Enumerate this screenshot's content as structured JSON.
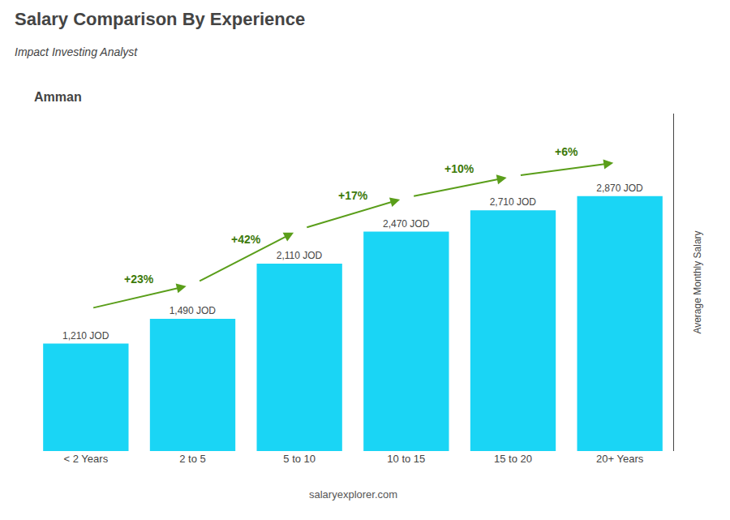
{
  "chart_data": {
    "type": "bar",
    "title": "Salary Comparison By Experience",
    "subtitle": "Impact Investing Analyst",
    "ylabel": "Average Monthly Salary",
    "categories": [
      "< 2 Years",
      "2 to 5",
      "5 to 10",
      "10 to 15",
      "15 to 20",
      "20+ Years"
    ],
    "values": [
      1210,
      1490,
      2110,
      2470,
      2710,
      2870
    ],
    "value_labels": [
      "1,210 JOD",
      "1,490 JOD",
      "2,110 JOD",
      "2,470 JOD",
      "2,710 JOD",
      "2,870 JOD"
    ],
    "data_labels": true,
    "color": "#1ad5f5",
    "ylim": [
      0,
      3800
    ],
    "tick_labels": "x",
    "grid": false,
    "annotations": [
      {
        "text": "Amman"
      },
      {
        "text": "salaryexplorer.com"
      },
      {
        "text": "+23%",
        "from": "< 2 Years",
        "to": "2 to 5"
      },
      {
        "text": "+42%",
        "from": "2 to 5",
        "to": "5 to 10"
      },
      {
        "text": "+17%",
        "from": "5 to 10",
        "to": "10 to 15"
      },
      {
        "text": "+10%",
        "from": "10 to 15",
        "to": "15 to 20"
      },
      {
        "text": "+6%",
        "from": "15 to 20",
        "to": "20+ Years"
      }
    ]
  }
}
